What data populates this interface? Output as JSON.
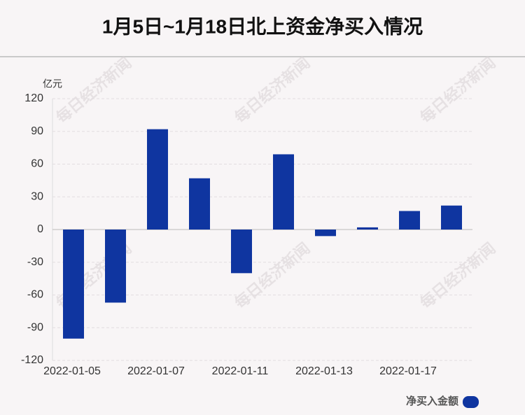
{
  "chart_data": {
    "type": "bar",
    "title": "1月5日~1月18日北上资金净买入情况",
    "y_axis_unit": "亿元",
    "watermark": "每日经济新闻",
    "categories": [
      "2022-01-05",
      null,
      "2022-01-07",
      null,
      "2022-01-11",
      null,
      "2022-01-13",
      null,
      "2022-01-17",
      null
    ],
    "series": [
      {
        "name": "净买入金额",
        "color": "#0f35a0",
        "values": [
          -100,
          -67,
          92,
          47,
          -40,
          69,
          -6,
          2,
          17,
          22
        ]
      }
    ],
    "ylim": [
      -120,
      120
    ],
    "yticks": [
      -120,
      -90,
      -60,
      -30,
      0,
      30,
      60,
      90,
      120
    ],
    "grid": true,
    "legend": "bottom-right"
  }
}
